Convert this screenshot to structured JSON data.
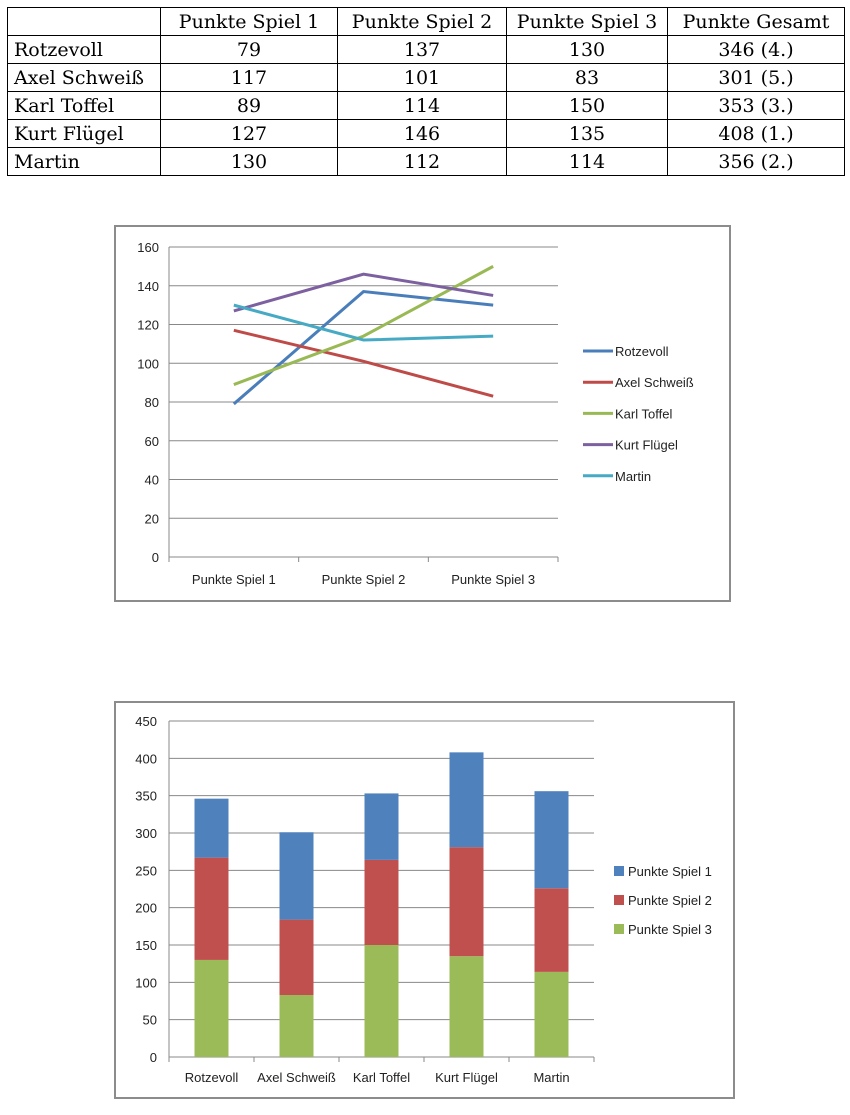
{
  "table": {
    "headers": [
      "",
      "Punkte Spiel 1",
      "Punkte Spiel 2",
      "Punkte Spiel 3",
      "Punkte Gesamt"
    ],
    "rows": [
      [
        "Rotzevoll",
        "79",
        "137",
        "130",
        "346 (4.)"
      ],
      [
        "Axel Schweiß",
        "117",
        "101",
        "83",
        "301 (5.)"
      ],
      [
        "Karl Toffel",
        "89",
        "114",
        "150",
        "353 (3.)"
      ],
      [
        "Kurt Flügel",
        "127",
        "146",
        "135",
        "408 (1.)"
      ],
      [
        "Martin",
        "130",
        "112",
        "114",
        "356 (2.)"
      ]
    ]
  },
  "chart_data": [
    {
      "type": "line",
      "title": "",
      "categories": [
        "Punkte Spiel 1",
        "Punkte Spiel 2",
        "Punkte Spiel 3"
      ],
      "ylim": [
        0,
        160
      ],
      "yticks": [
        0,
        20,
        40,
        60,
        80,
        100,
        120,
        140,
        160
      ],
      "grid": true,
      "legend": "right",
      "series": [
        {
          "name": "Rotzevoll",
          "values": [
            79,
            137,
            130
          ],
          "color": "#4a7ebb"
        },
        {
          "name": "Axel Schweiß",
          "values": [
            117,
            101,
            83
          ],
          "color": "#be4b48"
        },
        {
          "name": "Karl Toffel",
          "values": [
            89,
            114,
            150
          ],
          "color": "#98b954"
        },
        {
          "name": "Kurt Flügel",
          "values": [
            127,
            146,
            135
          ],
          "color": "#7d60a0"
        },
        {
          "name": "Martin",
          "values": [
            130,
            112,
            114
          ],
          "color": "#46aac5"
        }
      ]
    },
    {
      "type": "bar",
      "stacked": true,
      "title": "",
      "categories": [
        "Rotzevoll",
        "Axel Schweiß",
        "Karl Toffel",
        "Kurt Flügel",
        "Martin"
      ],
      "ylim": [
        0,
        450
      ],
      "yticks": [
        0,
        50,
        100,
        150,
        200,
        250,
        300,
        350,
        400,
        450
      ],
      "grid": true,
      "legend": "right",
      "series": [
        {
          "name": "Punkte Spiel 1",
          "values": [
            79,
            117,
            89,
            127,
            130
          ],
          "color": "#4f81bd"
        },
        {
          "name": "Punkte Spiel 2",
          "values": [
            137,
            101,
            114,
            146,
            112
          ],
          "color": "#c0504d"
        },
        {
          "name": "Punkte Spiel 3",
          "values": [
            130,
            83,
            150,
            135,
            114
          ],
          "color": "#9bbb59"
        }
      ]
    }
  ]
}
